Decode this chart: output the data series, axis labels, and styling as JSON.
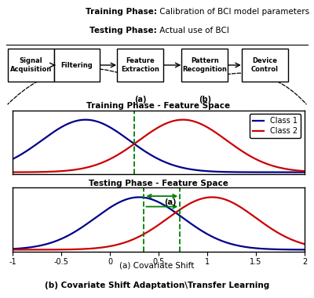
{
  "title_line1": "Training Phase:",
  "title_line1_rest": " Calibration of BCI model parameters",
  "title_line2": "Testing Phase:",
  "title_line2_rest": " Actual use of BCI",
  "boxes": [
    "Signal\nAcquisition",
    "Filtering",
    "Feature\nExtraction",
    "Pattern\nRecognition",
    "Device\nControl"
  ],
  "box_label_a": "(a)",
  "box_label_b": "(b)",
  "training_title": "Training Phase - Feature Space",
  "testing_title": "Testing Phase - Feature Space",
  "class1_label": "Class 1",
  "class2_label": "Class 2",
  "class1_color": "#00008B",
  "class2_color": "#CC0000",
  "green_color": "#008000",
  "train_mu1": -0.25,
  "train_mu2": 0.75,
  "train_sigma": 0.45,
  "test_mu1": 0.3,
  "test_mu2": 1.05,
  "test_sigma": 0.45,
  "xmin": -1,
  "xmax": 2,
  "xticks": [
    -1,
    -0.5,
    0,
    0.5,
    1,
    1.5,
    2
  ],
  "train_boundary": 0.25,
  "test_boundary1": 0.35,
  "test_boundary2": 0.72,
  "arrow_label": "(a)",
  "caption_a": "(a) Covariate Shift",
  "caption_b": "(b) Covariate Shift Adaptation\\Transfer Learning",
  "bg_color": "#FFFFFF"
}
